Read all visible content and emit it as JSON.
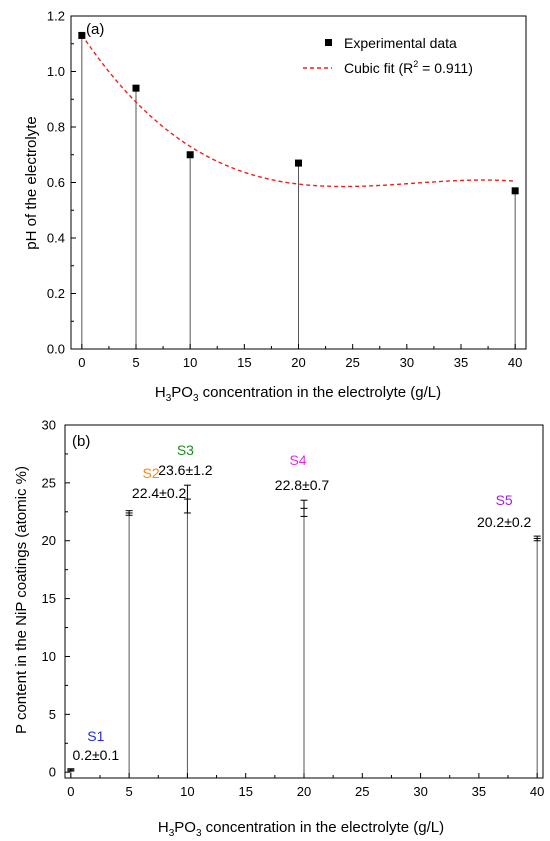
{
  "chart_data": [
    {
      "type": "scatter",
      "panel_label": "(a)",
      "xlabel_parts": [
        "H",
        "3",
        "PO",
        "3",
        " concentration in the electrolyte (g/L)"
      ],
      "ylabel": "pH of the electrolyte",
      "xlim": [
        -1,
        41
      ],
      "ylim": [
        0,
        1.2
      ],
      "xticks": [
        0,
        5,
        10,
        15,
        20,
        25,
        30,
        35,
        40
      ],
      "yticks": [
        0.0,
        0.2,
        0.4,
        0.6,
        0.8,
        1.0,
        1.2
      ],
      "ytick_labels": [
        "0.0",
        "0.2",
        "0.4",
        "0.6",
        "0.8",
        "1.0",
        "1.2"
      ],
      "grid": false,
      "legend_position": "top-right",
      "series": [
        {
          "name": "Experimental data",
          "style": "square-markers-with-drop-lines",
          "color": "#000000",
          "x": [
            0,
            5,
            10,
            20,
            40
          ],
          "y": [
            1.13,
            0.94,
            0.7,
            0.67,
            0.57
          ]
        },
        {
          "name_parts": [
            "Cubic fit (R",
            "2",
            " = 0.911)"
          ],
          "style": "dashed-line",
          "color": "#e8231e",
          "coefficients": [
            1.1319,
            -0.0578,
            0.001976,
            -2.151e-05
          ]
        }
      ]
    },
    {
      "type": "bar",
      "panel_label": "(b)",
      "xlabel_parts": [
        "H",
        "3",
        "PO",
        "3",
        " concentration in the electrolyte (g/L)"
      ],
      "ylabel": "P content in the NiP coatings (atomic %)",
      "xlim": [
        -0.5,
        40.5
      ],
      "ylim": [
        -0.5,
        30
      ],
      "xticks": [
        0,
        5,
        10,
        15,
        20,
        25,
        30,
        35,
        40
      ],
      "yticks": [
        0,
        5,
        10,
        15,
        20,
        25,
        30
      ],
      "ytick_labels": [
        "0",
        "5",
        "10",
        "15",
        "20",
        "25",
        "30"
      ],
      "grid": false,
      "style": "drop-lines-with-error-bars",
      "x": [
        0,
        5,
        10,
        20,
        40
      ],
      "values": [
        0.2,
        22.4,
        23.6,
        22.8,
        20.2
      ],
      "errors": [
        0.1,
        0.2,
        1.2,
        0.7,
        0.2
      ],
      "annotations": [
        {
          "name": "S1",
          "value": "0.2±0.1",
          "color": "#2a2ad6"
        },
        {
          "name": "S2",
          "value": "22.4±0.2",
          "color": "#f08c1e"
        },
        {
          "name": "S3",
          "value": "23.6±1.2",
          "color": "#1e8c1e"
        },
        {
          "name": "S4",
          "value": "22.8±0.7",
          "color": "#e02ce0"
        },
        {
          "name": "S5",
          "value": "20.2±0.2",
          "color": "#9b26d6"
        }
      ]
    }
  ]
}
